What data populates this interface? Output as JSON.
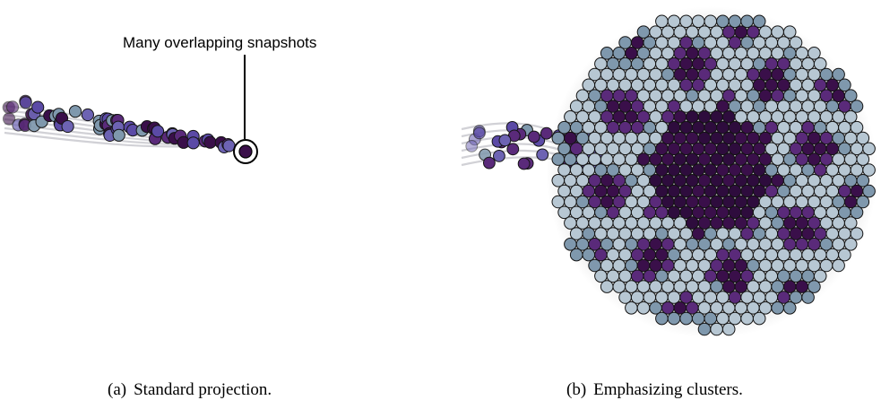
{
  "panel_a": {
    "annotation": "Many overlapping snapshots",
    "caption_label": "(a)",
    "caption_text": "Standard projection."
  },
  "panel_b": {
    "caption_label": "(b)",
    "caption_text": "Emphasizing clusters."
  },
  "colors": {
    "dark_purple": "#3a0f4a",
    "medium_purple": "#5a2a7a",
    "violet": "#5b4aa6",
    "light_blue_gray": "#b7c7d3",
    "steel_blue": "#7f98ad",
    "outline": "#141414"
  }
}
